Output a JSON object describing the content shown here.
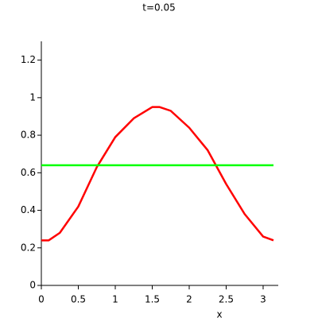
{
  "chart_data": {
    "type": "line",
    "title": "t=0.05",
    "x_label": "x",
    "series": [
      {
        "color": "#ff0000",
        "x": [
          0,
          0.1,
          0.25,
          0.5,
          0.75,
          1.0,
          1.25,
          1.5,
          1.6,
          1.75,
          2.0,
          2.25,
          2.5,
          2.75,
          3.0,
          3.14
        ],
        "values": [
          0.24,
          0.24,
          0.28,
          0.42,
          0.63,
          0.79,
          0.89,
          0.95,
          0.95,
          0.93,
          0.84,
          0.72,
          0.54,
          0.38,
          0.26,
          0.24
        ]
      },
      {
        "color": "#00ff00",
        "x": [
          0,
          3.14
        ],
        "values": [
          0.64,
          0.64
        ]
      }
    ],
    "xlim": [
      0,
      3.14
    ],
    "xticks": [
      0,
      0.5,
      1,
      1.5,
      2,
      2.5,
      3
    ],
    "ylim": [
      0,
      1.3
    ],
    "yticks": [
      0,
      0.2,
      0.4,
      0.6,
      0.8,
      1,
      1.2
    ]
  }
}
